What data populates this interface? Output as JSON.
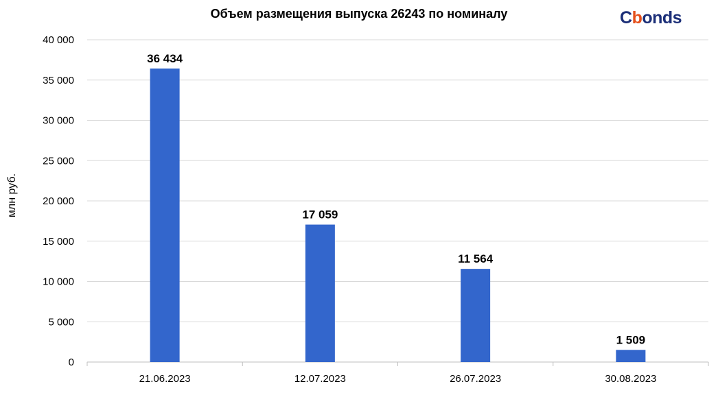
{
  "chart_data": {
    "type": "bar",
    "title": "Объем размещения выпуска 26243 по номиналу",
    "ylabel": "млн руб.",
    "xlabel": "",
    "categories": [
      "21.06.2023",
      "12.07.2023",
      "26.07.2023",
      "30.08.2023"
    ],
    "values": [
      36434,
      17059,
      11564,
      1509
    ],
    "value_labels": [
      "36 434",
      "17 059",
      "11 564",
      "1 509"
    ],
    "ylim": [
      0,
      40000
    ],
    "yticks": [
      0,
      5000,
      10000,
      15000,
      20000,
      25000,
      30000,
      35000,
      40000
    ],
    "ytick_labels": [
      "0",
      "5 000",
      "10 000",
      "15 000",
      "20 000",
      "25 000",
      "30 000",
      "35 000",
      "40 000"
    ],
    "bar_color": "#3366cc",
    "grid": true
  },
  "logo": {
    "text_before": "C",
    "text_accent": "b",
    "text_after": "onds",
    "color": "#1c2f78",
    "accent": "#e5501b"
  }
}
